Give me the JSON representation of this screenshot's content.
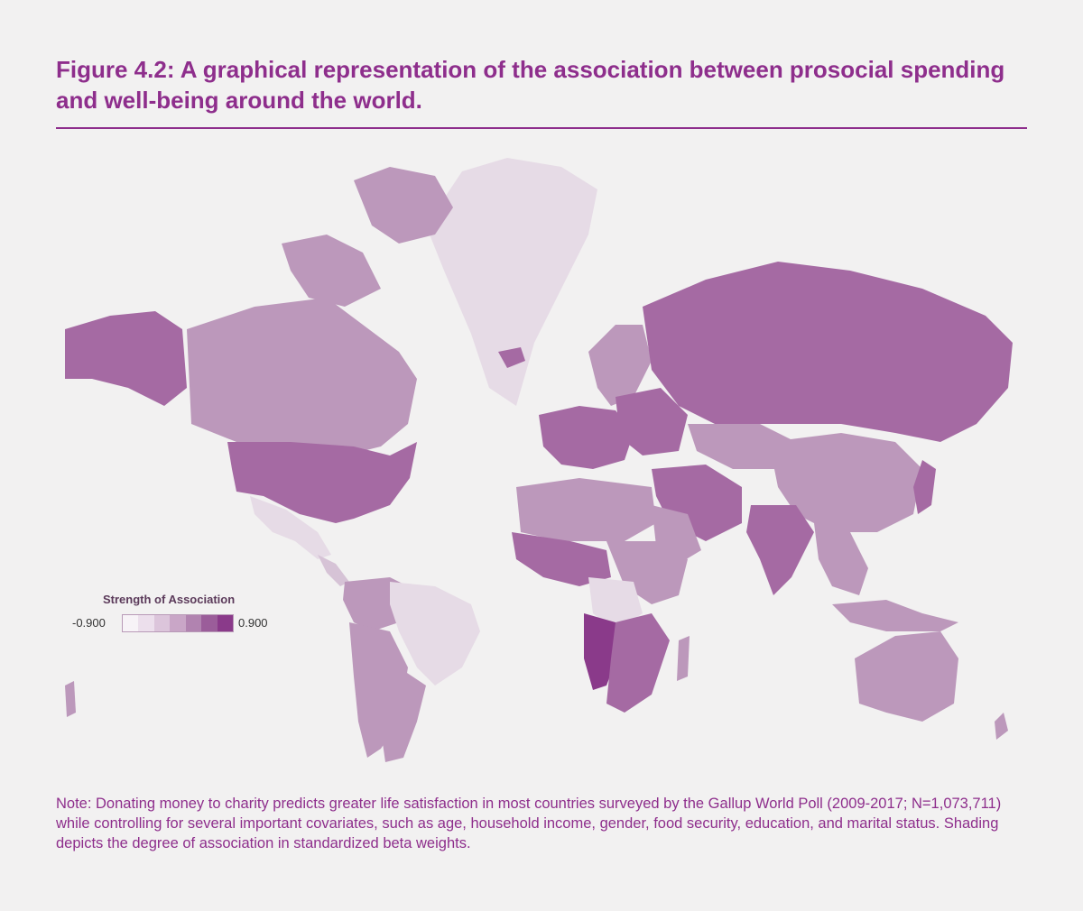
{
  "figure": {
    "title": "Figure 4.2: A graphical representation of the association between prosocial spending and well-being around the world."
  },
  "legend": {
    "title": "Strength of Association",
    "min_label": "-0.900",
    "max_label": "0.900",
    "scale_colors": [
      "#f7f3f7",
      "#ecdfec",
      "#dcc5db",
      "#c9a6c7",
      "#b183b0",
      "#9b5d9a",
      "#8a3a8a"
    ]
  },
  "note": "Note: Donating money to charity predicts greater life satisfaction in most countries surveyed by the Gallup World Poll (2009-2017; N=1,073,711) while controlling for several important covariates, such as age, household income, gender, food security, education, and marital status. Shading depicts the degree of association in standardized beta weights.",
  "colors": {
    "accent": "#8e2e8c",
    "background": "#f2f1f1",
    "strong": "#a56aa3",
    "medium": "#bc98bb",
    "light": "#d6c3d6",
    "lightest": "#e6dbe6",
    "peak": "#8a3a8a"
  }
}
